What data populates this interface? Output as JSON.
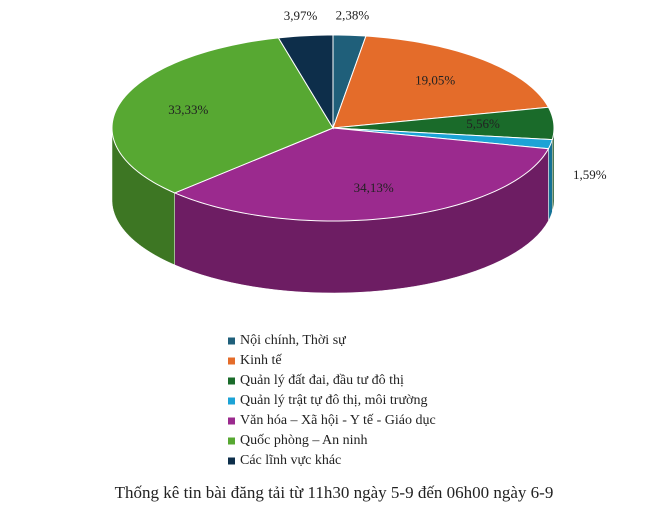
{
  "chart_data": {
    "type": "pie",
    "title": "Thống kê tin bài đăng tải từ 11h30 ngày 5-9 đến 06h00 ngày 6-9",
    "categories": [
      "Nội chính, Thời sự",
      "Kinh tế",
      "Quản lý đất đai, đầu tư đô thị",
      "Quản lý trật tự đô thị, môi trường",
      "Văn hóa – Xã hội - Y tế - Giáo dục",
      "Quốc phòng – An ninh",
      "Các lĩnh vực khác"
    ],
    "values": [
      2.38,
      19.05,
      5.56,
      1.59,
      34.13,
      33.33,
      3.97
    ],
    "value_labels": [
      "2,38%",
      "19,05%",
      "5,56%",
      "1,59%",
      "34,13%",
      "33,33%",
      "3,97%"
    ],
    "colors": [
      "#1f5f7a",
      "#e46c2a",
      "#1a6b2a",
      "#1ca3d6",
      "#9b2a8e",
      "#57a832",
      "#0d2e4a"
    ]
  }
}
